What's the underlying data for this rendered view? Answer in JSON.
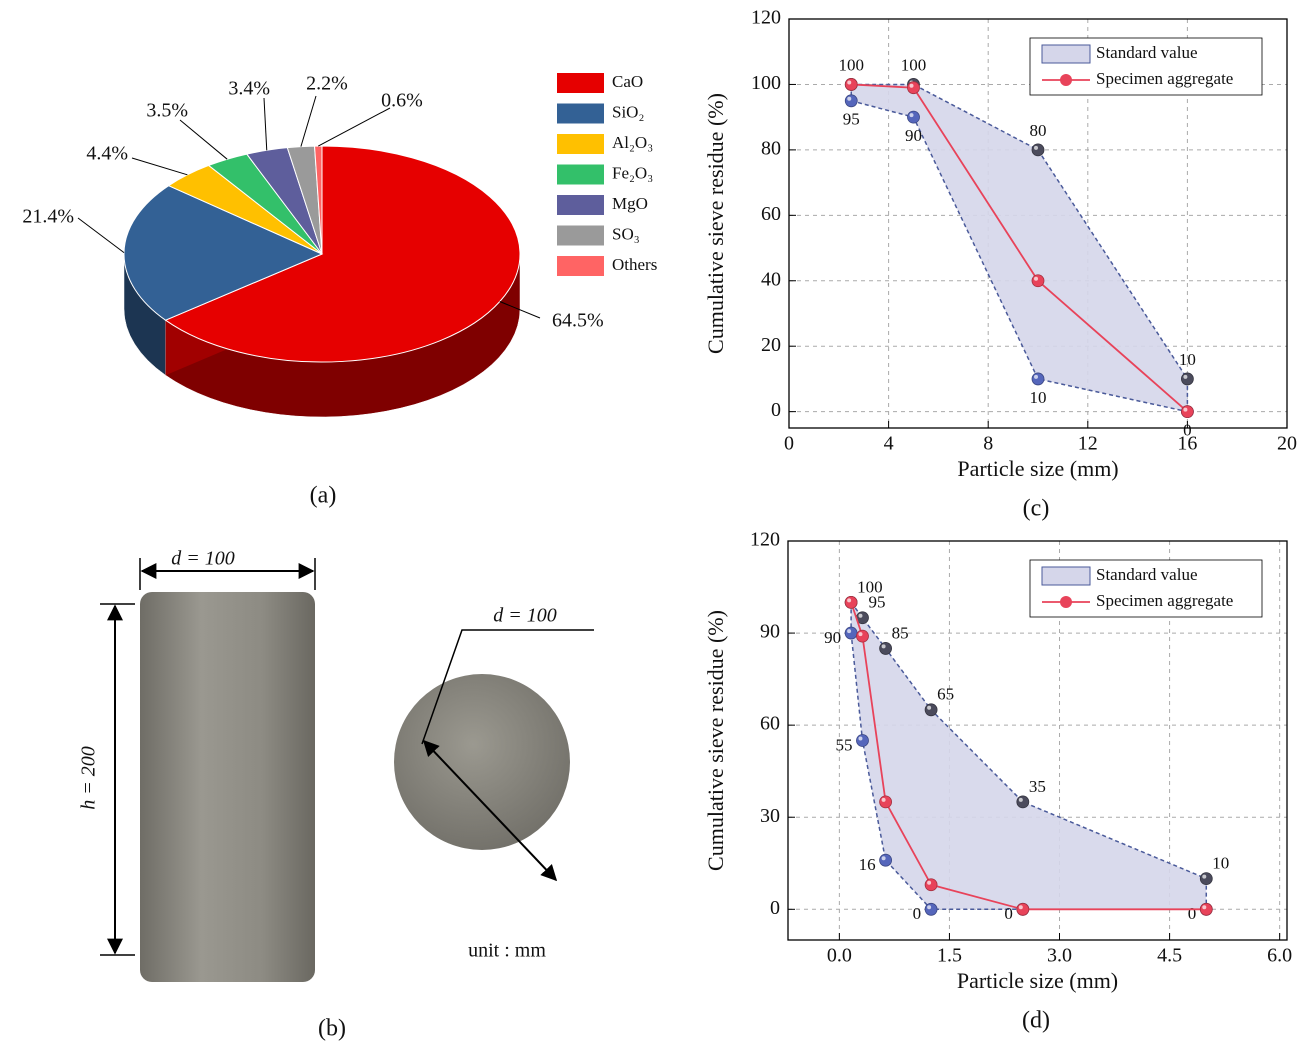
{
  "chart_data": [
    {
      "type": "pie3d",
      "panel_label": "(a)",
      "categories": [
        "CaO",
        "SiO₂",
        "Al₂O₃",
        "Fe₂O₃",
        "MgO",
        "SO₃",
        "Others"
      ],
      "values": [
        64.5,
        21.4,
        4.4,
        3.5,
        3.4,
        2.2,
        0.6
      ],
      "value_labels": [
        "64.5%",
        "21.4%",
        "4.4%",
        "3.5%",
        "3.4%",
        "2.2%",
        "0.6%"
      ],
      "colors": [
        "#e60000",
        "#336195",
        "#ffc000",
        "#33c06a",
        "#5e5e9c",
        "#9a9a9a",
        "#ff6464"
      ],
      "legend": "right"
    },
    {
      "type": "band",
      "panel_label": "(c)",
      "x_label": "Particle size (mm)",
      "y_label": "Cumulative sieve residue (%)",
      "x": [
        2.5,
        5,
        10,
        16
      ],
      "xlim": [
        0,
        20
      ],
      "xticks": [
        0,
        4,
        8,
        12,
        16,
        20
      ],
      "ylim": [
        -5,
        120
      ],
      "yticks": [
        0,
        20,
        40,
        60,
        80,
        100,
        120
      ],
      "grid": true,
      "legend": "upper right",
      "series": [
        {
          "name": "Standard value",
          "color": "#d5d6ea",
          "edge_color": "#4a5a9a",
          "marker_color": "#4b4b5c",
          "lower_marker_color": "#5566bb",
          "values": [
            100,
            100,
            80,
            10
          ],
          "lower": [
            95,
            90,
            10,
            0
          ]
        },
        {
          "name": "Specimen aggregate",
          "color": "#e8435a",
          "values": [
            100,
            99,
            40,
            0
          ]
        }
      ]
    },
    {
      "type": "band",
      "panel_label": "(d)",
      "x_label": "Particle size (mm)",
      "y_label": "Cumulative sieve residue (%)",
      "x": [
        0.16,
        0.315,
        0.63,
        1.25,
        2.5,
        5
      ],
      "xlim": [
        -0.7,
        6.1
      ],
      "xticks": [
        {
          "value": 0,
          "label": "0.0"
        },
        1.5,
        {
          "value": 3,
          "label": "3.0"
        },
        4.5,
        {
          "value": 6,
          "label": "6.0"
        }
      ],
      "ylim": [
        -10,
        120
      ],
      "yticks": [
        0,
        30,
        60,
        90,
        120
      ],
      "grid": true,
      "legend": "upper right",
      "series": [
        {
          "name": "Standard value",
          "color": "#d5d6ea",
          "edge_color": "#4a5a9a",
          "marker_color": "#4b4b5c",
          "lower_marker_color": "#5566bb",
          "values": [
            100,
            95,
            85,
            65,
            35,
            10
          ],
          "lower": [
            90,
            55,
            16,
            0,
            0,
            0
          ]
        },
        {
          "name": "Specimen aggregate",
          "color": "#e8435a",
          "values": [
            100,
            89,
            35,
            8,
            0,
            0
          ]
        }
      ]
    }
  ],
  "specimen_figure": {
    "panel_label": "(b)",
    "side_diameter": "d = 100",
    "height": "h = 200",
    "top_diameter": "d = 100",
    "unit": "unit : mm"
  }
}
